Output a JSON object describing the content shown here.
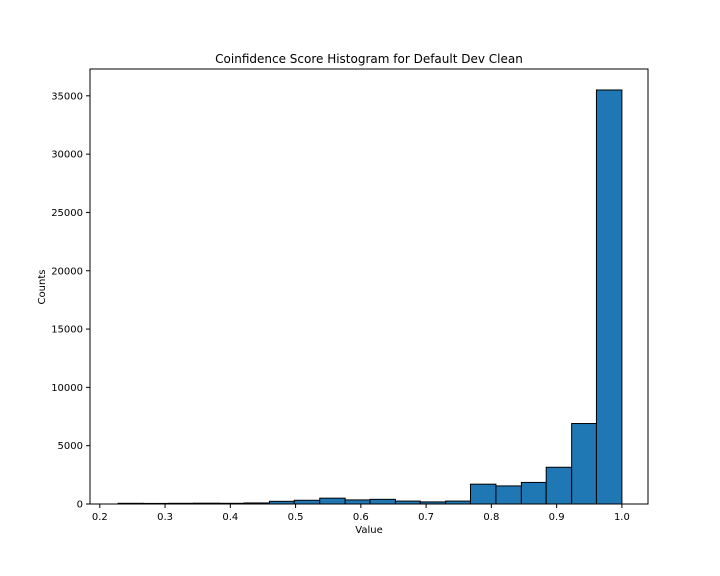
{
  "chart_data": {
    "type": "bar",
    "title": "Coinfidence Score Histogram for Default Dev Clean",
    "xlabel": "Value",
    "ylabel": "Counts",
    "xlim": [
      0.185,
      1.04
    ],
    "ylim": [
      0,
      37300
    ],
    "bar_color": "#1f77b4",
    "edge_color": "#000000",
    "x_ticks": [
      0.2,
      0.3,
      0.4,
      0.5,
      0.6,
      0.7,
      0.8,
      0.9,
      1.0
    ],
    "x_tick_labels": [
      "0.2",
      "0.3",
      "0.4",
      "0.5",
      "0.6",
      "0.7",
      "0.8",
      "0.9",
      "1.0"
    ],
    "y_ticks": [
      0,
      5000,
      10000,
      15000,
      20000,
      25000,
      30000,
      35000
    ],
    "y_tick_labels": [
      "0",
      "5000",
      "10000",
      "15000",
      "20000",
      "25000",
      "30000",
      "35000"
    ],
    "bins": [
      {
        "x0": 0.228,
        "x1": 0.267,
        "count": 60
      },
      {
        "x0": 0.267,
        "x1": 0.305,
        "count": 50
      },
      {
        "x0": 0.305,
        "x1": 0.344,
        "count": 60
      },
      {
        "x0": 0.344,
        "x1": 0.383,
        "count": 70
      },
      {
        "x0": 0.383,
        "x1": 0.421,
        "count": 60
      },
      {
        "x0": 0.421,
        "x1": 0.46,
        "count": 90
      },
      {
        "x0": 0.46,
        "x1": 0.498,
        "count": 230
      },
      {
        "x0": 0.498,
        "x1": 0.537,
        "count": 320
      },
      {
        "x0": 0.537,
        "x1": 0.576,
        "count": 500
      },
      {
        "x0": 0.576,
        "x1": 0.614,
        "count": 350
      },
      {
        "x0": 0.614,
        "x1": 0.653,
        "count": 400
      },
      {
        "x0": 0.653,
        "x1": 0.691,
        "count": 250
      },
      {
        "x0": 0.691,
        "x1": 0.73,
        "count": 180
      },
      {
        "x0": 0.73,
        "x1": 0.768,
        "count": 250
      },
      {
        "x0": 0.768,
        "x1": 0.807,
        "count": 1700
      },
      {
        "x0": 0.807,
        "x1": 0.846,
        "count": 1550
      },
      {
        "x0": 0.846,
        "x1": 0.884,
        "count": 1850
      },
      {
        "x0": 0.884,
        "x1": 0.923,
        "count": 3150
      },
      {
        "x0": 0.923,
        "x1": 0.961,
        "count": 6900
      },
      {
        "x0": 0.961,
        "x1": 1.0,
        "count": 35500
      }
    ]
  }
}
